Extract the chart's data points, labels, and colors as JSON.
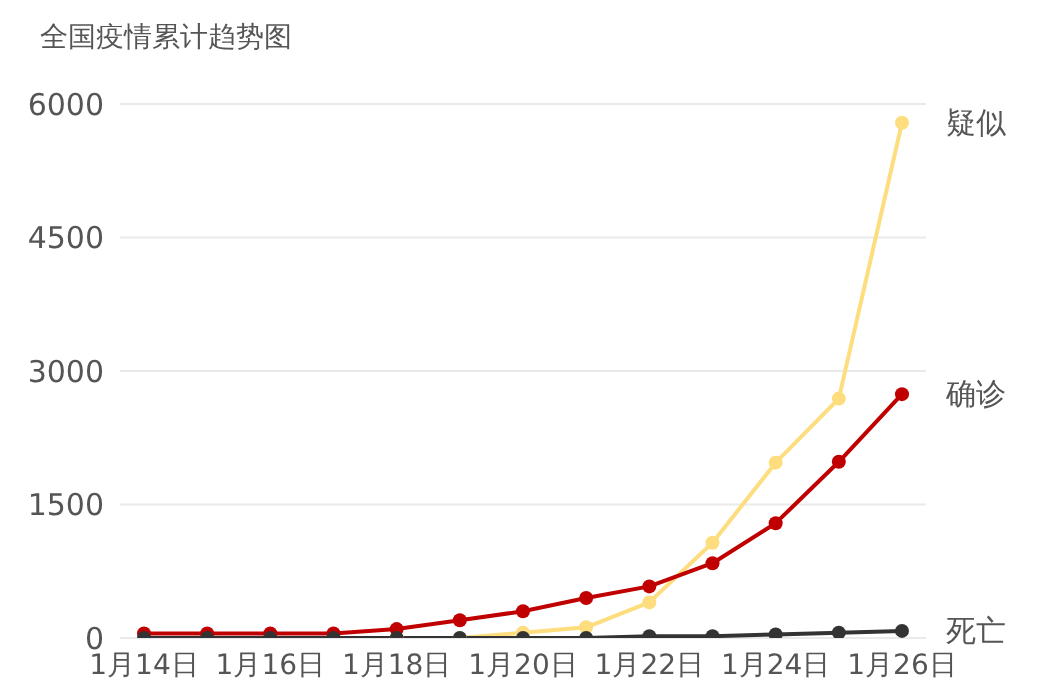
{
  "chart_data": {
    "type": "line",
    "title": "全国疫情累计趋势图",
    "categories": [
      "1月14日",
      null,
      "1月16日",
      null,
      "1月18日",
      null,
      "1月20日",
      null,
      "1月22日",
      null,
      "1月24日",
      null,
      "1月26日"
    ],
    "series": [
      {
        "name": "疑似",
        "color": "#fddd7e",
        "values": [
          null,
          null,
          null,
          null,
          0,
          0,
          60,
          120,
          400,
          1070,
          1970,
          2690,
          5790
        ]
      },
      {
        "name": "确诊",
        "color": "#c00000",
        "values": [
          50,
          50,
          50,
          50,
          100,
          200,
          300,
          450,
          580,
          840,
          1290,
          1980,
          2740
        ]
      },
      {
        "name": "死亡",
        "color": "#333333",
        "values": [
          0,
          0,
          0,
          0,
          0,
          0,
          0,
          0,
          20,
          20,
          40,
          60,
          80
        ]
      }
    ],
    "ylim": [
      0,
      6000
    ],
    "yticks": [
      0,
      1500,
      3000,
      4500,
      6000
    ],
    "grid": "y",
    "marker": "circle",
    "line_style": "solid"
  }
}
